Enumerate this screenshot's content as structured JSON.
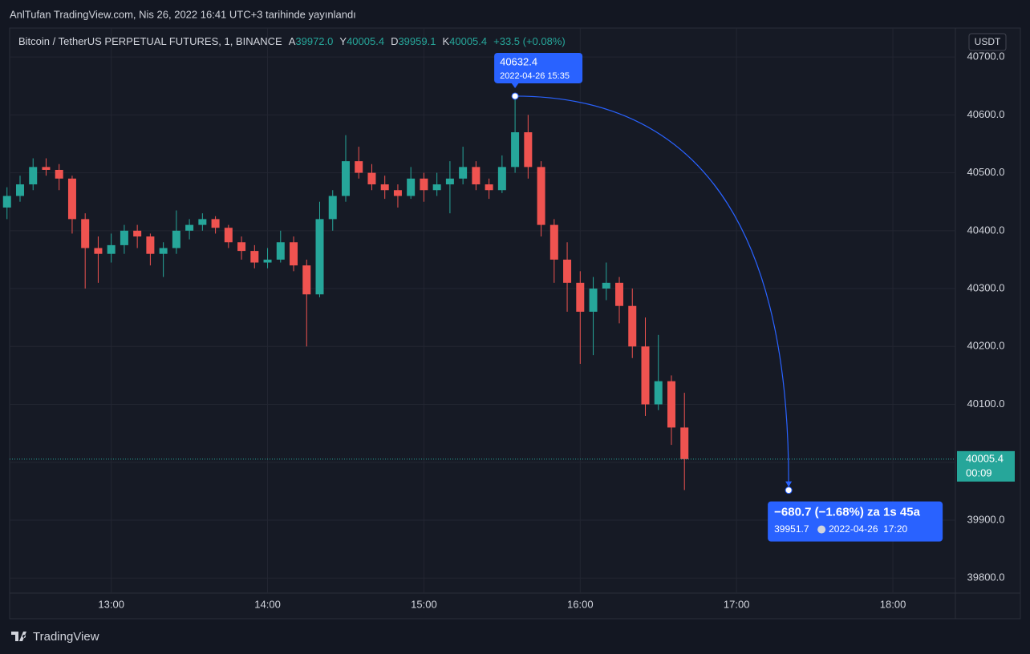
{
  "header": {
    "title": "AnlTufan TradingView.com, Nis 26, 2022 16:41 UTC+3 tarihinde yayınlandı"
  },
  "footer": {
    "brand": "TradingView"
  },
  "chart_data": {
    "type": "candlestick",
    "symbol": "Bitcoin / TetherUS PERPETUAL FUTURES, 1, BINANCE",
    "legend": {
      "open_label": "A",
      "open": "39972.0",
      "high_label": "Y",
      "high": "40005.4",
      "low_label": "D",
      "low": "39959.1",
      "close_label": "K",
      "close": "40005.4",
      "change": "+33.5 (+0.08%)"
    },
    "currency": "USDT",
    "up_color": "#26a69a",
    "down_color": "#ef5350",
    "grid": true,
    "x": [
      "12:20",
      "12:25",
      "12:30",
      "12:35",
      "12:40",
      "12:45",
      "12:50",
      "12:55",
      "13:00",
      "13:05",
      "13:10",
      "13:15",
      "13:20",
      "13:25",
      "13:30",
      "13:35",
      "13:40",
      "13:45",
      "13:50",
      "13:55",
      "14:00",
      "14:05",
      "14:10",
      "14:15",
      "14:20",
      "14:25",
      "14:30",
      "14:35",
      "14:40",
      "14:45",
      "14:50",
      "14:55",
      "15:00",
      "15:05",
      "15:10",
      "15:15",
      "15:20",
      "15:25",
      "15:30",
      "15:35",
      "15:40",
      "15:45",
      "15:50",
      "15:55",
      "16:00",
      "16:05",
      "16:10",
      "16:15",
      "16:20",
      "16:25",
      "16:30",
      "16:35",
      "16:40"
    ],
    "open": [
      40440,
      40460,
      40480,
      40510,
      40505,
      40490,
      40420,
      40370,
      40360,
      40375,
      40400,
      40390,
      40360,
      40370,
      40400,
      40410,
      40420,
      40405,
      40380,
      40365,
      40345,
      40350,
      40380,
      40340,
      40290,
      40420,
      40460,
      40520,
      40500,
      40480,
      40470,
      40460,
      40490,
      40470,
      40480,
      40490,
      40510,
      40480,
      40470,
      40510,
      40570,
      40510,
      40410,
      40350,
      40310,
      40260,
      40300,
      40310,
      40270,
      40200,
      40100,
      40140,
      40060
    ],
    "high": [
      40475,
      40495,
      40525,
      40525,
      40515,
      40495,
      40430,
      40390,
      40395,
      40410,
      40410,
      40395,
      40380,
      40435,
      40420,
      40430,
      40425,
      40410,
      40390,
      40375,
      40370,
      40400,
      40390,
      40350,
      40450,
      40470,
      40565,
      40545,
      40515,
      40495,
      40480,
      40510,
      40500,
      40500,
      40520,
      40545,
      40520,
      40490,
      40530,
      40632.4,
      40600,
      40520,
      40420,
      40380,
      40330,
      40320,
      40345,
      40320,
      40300,
      40250,
      40220,
      40150,
      40120
    ],
    "low": [
      40420,
      40450,
      40470,
      40495,
      40470,
      40395,
      40300,
      40310,
      40345,
      40360,
      40370,
      40340,
      40320,
      40360,
      40385,
      40400,
      40395,
      40370,
      40350,
      40335,
      40335,
      40345,
      40330,
      40200,
      40285,
      40400,
      40450,
      40490,
      40470,
      40455,
      40440,
      40455,
      40450,
      40460,
      40430,
      40480,
      40470,
      40455,
      40465,
      40500,
      40490,
      40390,
      40310,
      40260,
      40170,
      40185,
      40280,
      40240,
      40180,
      40080,
      40090,
      40030,
      39952
    ],
    "close": [
      40460,
      40480,
      40510,
      40505,
      40490,
      40420,
      40370,
      40360,
      40375,
      40400,
      40390,
      40360,
      40370,
      40400,
      40410,
      40420,
      40405,
      40380,
      40365,
      40345,
      40350,
      40380,
      40340,
      40290,
      40420,
      40460,
      40520,
      40500,
      40480,
      40470,
      40460,
      40490,
      40470,
      40480,
      40490,
      40510,
      40480,
      40470,
      40510,
      40570,
      40510,
      40410,
      40350,
      40310,
      40260,
      40300,
      40310,
      40270,
      40200,
      40100,
      40140,
      40060,
      40005.4
    ],
    "xlim": [
      "12:21",
      "18:24"
    ],
    "xticks": [
      "13:00",
      "14:00",
      "15:00",
      "16:00",
      "17:00",
      "18:00"
    ],
    "ylim": [
      39774,
      40750
    ],
    "yticks": [
      {
        "value": 39800,
        "label": "39800.0"
      },
      {
        "value": 39900,
        "label": "39900.0"
      },
      {
        "value": 40000,
        "label": "40000.0"
      },
      {
        "value": 40100,
        "label": "40100.0"
      },
      {
        "value": 40200,
        "label": "40200.0"
      },
      {
        "value": 40300,
        "label": "40300.0"
      },
      {
        "value": 40400,
        "label": "40400.0"
      },
      {
        "value": 40500,
        "label": "40500.0"
      },
      {
        "value": 40600,
        "label": "40600.0"
      },
      {
        "value": 40700,
        "label": "40700.0"
      }
    ],
    "last_price": {
      "price": 40005.4,
      "countdown": "00:09"
    },
    "peak": {
      "price": 40632.4,
      "time": "2022-04-26 15:35"
    },
    "target": {
      "change": "−680.7 (−1.68%) za 1s 45a",
      "price": 39951.7,
      "time": "2022-04-26  17:20"
    }
  }
}
